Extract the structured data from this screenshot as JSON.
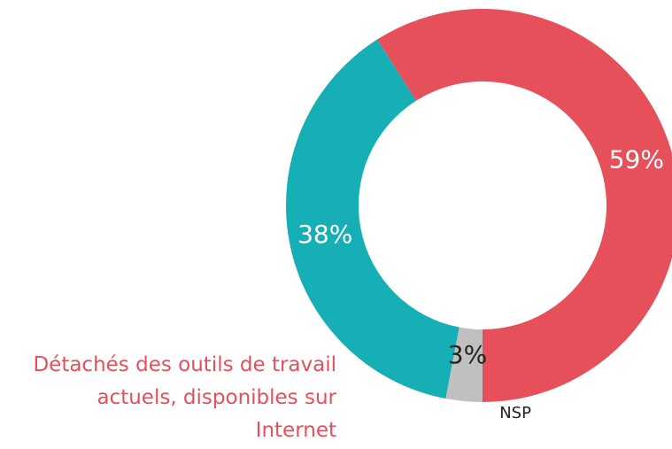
{
  "chart_data": {
    "type": "donut",
    "categories": [
      "Détachés des outils de travail actuels, disponibles sur Internet",
      null,
      "NSP"
    ],
    "values": [
      59,
      38,
      3
    ],
    "value_labels": [
      "59%",
      "38%",
      "3%"
    ],
    "colors": [
      "#e5505a",
      "#16afb5",
      "#c0c0c0"
    ]
  }
}
